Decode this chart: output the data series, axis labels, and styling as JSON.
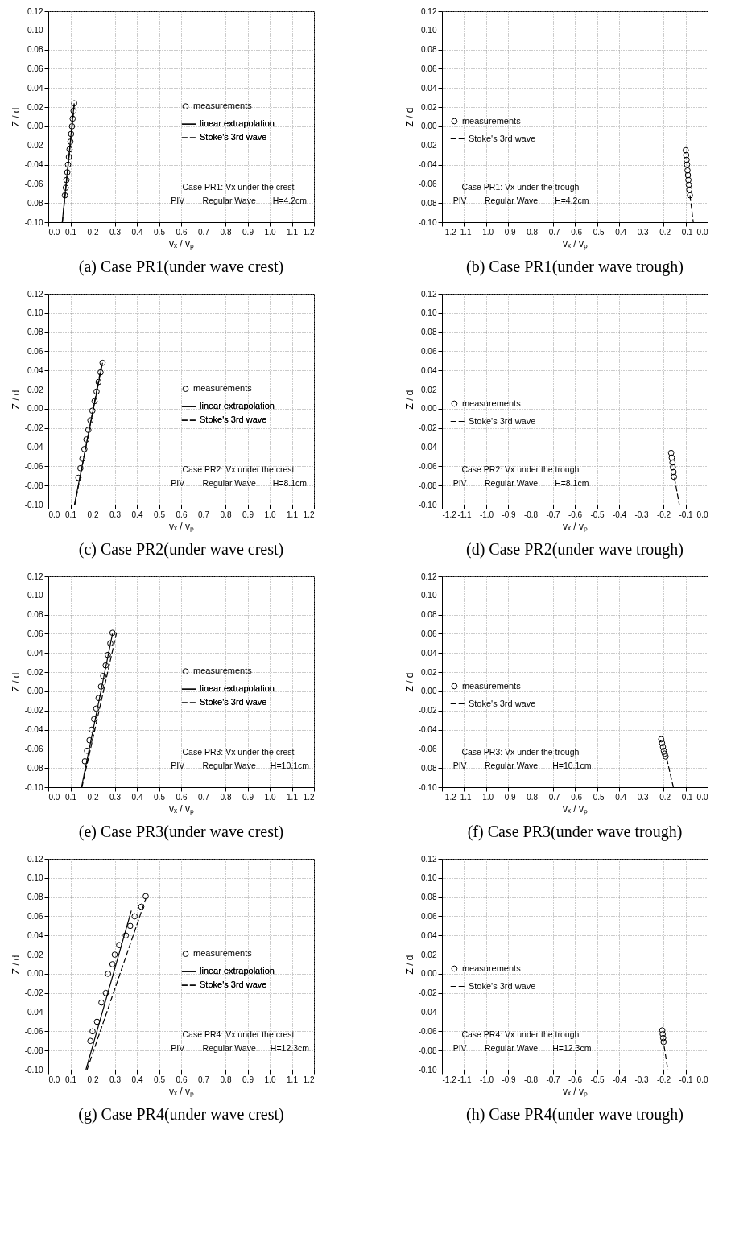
{
  "chart_data": [
    {
      "type": "scatter",
      "title": "(a) Case PR1(under wave crest)",
      "xlabel": "vₓ / vₚ",
      "ylabel": "Z / d",
      "xlim": [
        0,
        1.2
      ],
      "ylim": [
        -0.1,
        0.12
      ],
      "grid": true,
      "legend": "right",
      "xticks": [
        {
          "value": 0,
          "label": "0.0"
        },
        {
          "value": 0.1,
          "label": "0.1"
        },
        {
          "value": 0.2,
          "label": "0.2"
        },
        {
          "value": 0.3,
          "label": "0.3"
        },
        {
          "value": 0.4,
          "label": "0.4"
        },
        {
          "value": 0.5,
          "label": "0.5"
        },
        {
          "value": 0.6,
          "label": "0.6"
        },
        {
          "value": 0.7,
          "label": "0.7"
        },
        {
          "value": 0.8,
          "label": "0.8"
        },
        {
          "value": 0.9,
          "label": "0.9"
        },
        {
          "value": 1,
          "label": "1.0"
        },
        {
          "value": 1.1,
          "label": "1.1"
        },
        {
          "value": 1.2,
          "label": "1.2"
        }
      ],
      "yticks": [
        {
          "value": -0.1,
          "label": "-0.10"
        },
        {
          "value": -0.08,
          "label": "-0.08"
        },
        {
          "value": -0.06,
          "label": "-0.06"
        },
        {
          "value": -0.04,
          "label": "-0.04"
        },
        {
          "value": -0.02,
          "label": "-0.02"
        },
        {
          "value": 0,
          "label": "0.00"
        },
        {
          "value": 0.02,
          "label": "0.02"
        },
        {
          "value": 0.04,
          "label": "0.04"
        },
        {
          "value": 0.06,
          "label": "0.06"
        },
        {
          "value": 0.08,
          "label": "0.08"
        },
        {
          "value": 0.1,
          "label": "0.10"
        },
        {
          "value": 0.12,
          "label": "0.12"
        }
      ],
      "series": [
        {
          "name": "measurements",
          "marker": "circle",
          "color": "#000000",
          "x": [
            0.075,
            0.079,
            0.082,
            0.086,
            0.089,
            0.093,
            0.096,
            0.1,
            0.103,
            0.107,
            0.11,
            0.114,
            0.117
          ],
          "values": [
            -0.072,
            -0.064,
            -0.056,
            -0.048,
            -0.04,
            -0.032,
            -0.024,
            -0.016,
            -0.008,
            0,
            0.008,
            0.016,
            0.024
          ]
        },
        {
          "name": "linear extrapolation",
          "type": "line",
          "line_style": "solid",
          "color": "#000000",
          "x": [
            0.063,
            0.117
          ],
          "values": [
            -0.1,
            0.024
          ]
        },
        {
          "name": "Stoke's 3rd wave",
          "type": "line",
          "line_style": "dashed",
          "color": "#000000",
          "x": [
            0.064,
            0.118
          ],
          "values": [
            -0.1,
            0.024
          ]
        }
      ],
      "annotations": [
        "Case PR1: Vx under the crest",
        "PIV",
        "Regular Wave",
        "H=4.2cm"
      ]
    },
    {
      "type": "scatter",
      "title": "(b) Case PR1(under wave trough)",
      "xlabel": "vₓ / vₚ",
      "ylabel": "Z / d",
      "xlim": [
        -1.2,
        0
      ],
      "ylim": [
        -0.1,
        0.12
      ],
      "grid": true,
      "legend": "left",
      "xticks": [
        {
          "value": -1.2,
          "label": "-1.2"
        },
        {
          "value": -1.1,
          "label": "-1.1"
        },
        {
          "value": -1,
          "label": "-1.0"
        },
        {
          "value": -0.9,
          "label": "-0.9"
        },
        {
          "value": -0.8,
          "label": "-0.8"
        },
        {
          "value": -0.7,
          "label": "-0.7"
        },
        {
          "value": -0.6,
          "label": "-0.6"
        },
        {
          "value": -0.5,
          "label": "-0.5"
        },
        {
          "value": -0.4,
          "label": "-0.4"
        },
        {
          "value": -0.3,
          "label": "-0.3"
        },
        {
          "value": -0.2,
          "label": "-0.2"
        },
        {
          "value": -0.1,
          "label": "-0.1"
        },
        {
          "value": 0,
          "label": "0.0"
        }
      ],
      "yticks": [
        {
          "value": -0.1,
          "label": "-0.10"
        },
        {
          "value": -0.08,
          "label": "-0.08"
        },
        {
          "value": -0.06,
          "label": "-0.06"
        },
        {
          "value": -0.04,
          "label": "-0.04"
        },
        {
          "value": -0.02,
          "label": "-0.02"
        },
        {
          "value": 0,
          "label": "0.00"
        },
        {
          "value": 0.02,
          "label": "0.02"
        },
        {
          "value": 0.04,
          "label": "0.04"
        },
        {
          "value": 0.06,
          "label": "0.06"
        },
        {
          "value": 0.08,
          "label": "0.08"
        },
        {
          "value": 0.1,
          "label": "0.10"
        },
        {
          "value": 0.12,
          "label": "0.12"
        }
      ],
      "series": [
        {
          "name": "measurements",
          "marker": "circle",
          "color": "#000000",
          "x": [
            -0.099,
            -0.097,
            -0.095,
            -0.093,
            -0.091,
            -0.089,
            -0.087,
            -0.085,
            -0.083,
            -0.08
          ],
          "values": [
            -0.025,
            -0.03,
            -0.035,
            -0.04,
            -0.046,
            -0.051,
            -0.056,
            -0.061,
            -0.066,
            -0.072
          ]
        },
        {
          "name": "Stoke's 3rd wave",
          "type": "line",
          "line_style": "dashed",
          "color": "#000000",
          "x": [
            -0.08,
            -0.065
          ],
          "values": [
            -0.072,
            -0.1
          ]
        }
      ],
      "annotations": [
        "Case PR1: Vx under the trough",
        "PIV",
        "Regular Wave",
        "H=4.2cm"
      ]
    },
    {
      "type": "scatter",
      "title": "(c) Case PR2(under wave crest)",
      "xlabel": "vₓ / vₚ",
      "ylabel": "Z / d",
      "xlim": [
        0,
        1.2
      ],
      "ylim": [
        -0.1,
        0.12
      ],
      "grid": true,
      "legend": "right",
      "xticks": [
        {
          "value": 0,
          "label": "0.0"
        },
        {
          "value": 0.1,
          "label": "0.1"
        },
        {
          "value": 0.2,
          "label": "0.2"
        },
        {
          "value": 0.3,
          "label": "0.3"
        },
        {
          "value": 0.4,
          "label": "0.4"
        },
        {
          "value": 0.5,
          "label": "0.5"
        },
        {
          "value": 0.6,
          "label": "0.6"
        },
        {
          "value": 0.7,
          "label": "0.7"
        },
        {
          "value": 0.8,
          "label": "0.8"
        },
        {
          "value": 0.9,
          "label": "0.9"
        },
        {
          "value": 1,
          "label": "1.0"
        },
        {
          "value": 1.1,
          "label": "1.1"
        },
        {
          "value": 1.2,
          "label": "1.2"
        }
      ],
      "yticks": [
        {
          "value": -0.1,
          "label": "-0.10"
        },
        {
          "value": -0.08,
          "label": "-0.08"
        },
        {
          "value": -0.06,
          "label": "-0.06"
        },
        {
          "value": -0.04,
          "label": "-0.04"
        },
        {
          "value": -0.02,
          "label": "-0.02"
        },
        {
          "value": 0,
          "label": "0.00"
        },
        {
          "value": 0.02,
          "label": "0.02"
        },
        {
          "value": 0.04,
          "label": "0.04"
        },
        {
          "value": 0.06,
          "label": "0.06"
        },
        {
          "value": 0.08,
          "label": "0.08"
        },
        {
          "value": 0.1,
          "label": "0.10"
        },
        {
          "value": 0.12,
          "label": "0.12"
        }
      ],
      "series": [
        {
          "name": "measurements",
          "marker": "circle",
          "color": "#000000",
          "x": [
            0.136,
            0.145,
            0.154,
            0.163,
            0.172,
            0.181,
            0.19,
            0.199,
            0.209,
            0.218,
            0.227,
            0.236,
            0.245
          ],
          "values": [
            -0.072,
            -0.062,
            -0.052,
            -0.042,
            -0.032,
            -0.022,
            -0.012,
            -0.002,
            0.008,
            0.018,
            0.028,
            0.038,
            0.048
          ]
        },
        {
          "name": "linear extrapolation",
          "type": "line",
          "line_style": "solid",
          "color": "#000000",
          "x": [
            0.118,
            0.245
          ],
          "values": [
            -0.1,
            0.048
          ]
        },
        {
          "name": "Stoke's 3rd wave",
          "type": "line",
          "line_style": "dashed",
          "color": "#000000",
          "x": [
            0.12,
            0.24
          ],
          "values": [
            -0.1,
            0.045
          ]
        }
      ],
      "annotations": [
        "Case PR2: Vx under the crest",
        "PIV",
        "Regular Wave",
        "H=8.1cm"
      ]
    },
    {
      "type": "scatter",
      "title": "(d) Case PR2(under wave trough)",
      "xlabel": "vₓ / vₚ",
      "ylabel": "Z / d",
      "xlim": [
        -1.2,
        0
      ],
      "ylim": [
        -0.1,
        0.12
      ],
      "grid": true,
      "legend": "left",
      "xticks": [
        {
          "value": -1.2,
          "label": "-1.2"
        },
        {
          "value": -1.1,
          "label": "-1.1"
        },
        {
          "value": -1,
          "label": "-1.0"
        },
        {
          "value": -0.9,
          "label": "-0.9"
        },
        {
          "value": -0.8,
          "label": "-0.8"
        },
        {
          "value": -0.7,
          "label": "-0.7"
        },
        {
          "value": -0.6,
          "label": "-0.6"
        },
        {
          "value": -0.5,
          "label": "-0.5"
        },
        {
          "value": -0.4,
          "label": "-0.4"
        },
        {
          "value": -0.3,
          "label": "-0.3"
        },
        {
          "value": -0.2,
          "label": "-0.2"
        },
        {
          "value": -0.1,
          "label": "-0.1"
        },
        {
          "value": 0,
          "label": "0.0"
        }
      ],
      "yticks": [
        {
          "value": -0.1,
          "label": "-0.10"
        },
        {
          "value": -0.08,
          "label": "-0.08"
        },
        {
          "value": -0.06,
          "label": "-0.06"
        },
        {
          "value": -0.04,
          "label": "-0.04"
        },
        {
          "value": -0.02,
          "label": "-0.02"
        },
        {
          "value": 0,
          "label": "0.00"
        },
        {
          "value": 0.02,
          "label": "0.02"
        },
        {
          "value": 0.04,
          "label": "0.04"
        },
        {
          "value": 0.06,
          "label": "0.06"
        },
        {
          "value": 0.08,
          "label": "0.08"
        },
        {
          "value": 0.1,
          "label": "0.10"
        },
        {
          "value": 0.12,
          "label": "0.12"
        }
      ],
      "series": [
        {
          "name": "measurements",
          "marker": "circle",
          "color": "#000000",
          "x": [
            -0.165,
            -0.162,
            -0.159,
            -0.157,
            -0.154,
            -0.152
          ],
          "values": [
            -0.046,
            -0.051,
            -0.056,
            -0.061,
            -0.066,
            -0.071
          ]
        },
        {
          "name": "Stoke's 3rd wave",
          "type": "line",
          "line_style": "dashed",
          "color": "#000000",
          "x": [
            -0.15,
            -0.128
          ],
          "values": [
            -0.072,
            -0.1
          ]
        }
      ],
      "annotations": [
        "Case PR2: Vx under the trough",
        "PIV",
        "Regular Wave",
        "H=8.1cm"
      ]
    },
    {
      "type": "scatter",
      "title": "(e) Case PR3(under wave crest)",
      "xlabel": "vₓ / vₚ",
      "ylabel": "Z / d",
      "xlim": [
        0,
        1.2
      ],
      "ylim": [
        -0.1,
        0.12
      ],
      "grid": true,
      "legend": "right",
      "xticks": [
        {
          "value": 0,
          "label": "0.0"
        },
        {
          "value": 0.1,
          "label": "0.1"
        },
        {
          "value": 0.2,
          "label": "0.2"
        },
        {
          "value": 0.3,
          "label": "0.3"
        },
        {
          "value": 0.4,
          "label": "0.4"
        },
        {
          "value": 0.5,
          "label": "0.5"
        },
        {
          "value": 0.6,
          "label": "0.6"
        },
        {
          "value": 0.7,
          "label": "0.7"
        },
        {
          "value": 0.8,
          "label": "0.8"
        },
        {
          "value": 0.9,
          "label": "0.9"
        },
        {
          "value": 1,
          "label": "1.0"
        },
        {
          "value": 1.1,
          "label": "1.1"
        },
        {
          "value": 1.2,
          "label": "1.2"
        }
      ],
      "yticks": [
        {
          "value": -0.1,
          "label": "-0.10"
        },
        {
          "value": -0.08,
          "label": "-0.08"
        },
        {
          "value": -0.06,
          "label": "-0.06"
        },
        {
          "value": -0.04,
          "label": "-0.04"
        },
        {
          "value": -0.02,
          "label": "-0.02"
        },
        {
          "value": 0,
          "label": "0.00"
        },
        {
          "value": 0.02,
          "label": "0.02"
        },
        {
          "value": 0.04,
          "label": "0.04"
        },
        {
          "value": 0.06,
          "label": "0.06"
        },
        {
          "value": 0.08,
          "label": "0.08"
        },
        {
          "value": 0.1,
          "label": "0.10"
        },
        {
          "value": 0.12,
          "label": "0.12"
        }
      ],
      "series": [
        {
          "name": "measurements",
          "marker": "circle",
          "color": "#000000",
          "x": [
            0.165,
            0.175,
            0.186,
            0.196,
            0.207,
            0.217,
            0.227,
            0.238,
            0.248,
            0.259,
            0.269,
            0.28,
            0.29
          ],
          "values": [
            -0.073,
            -0.062,
            -0.051,
            -0.04,
            -0.029,
            -0.018,
            -0.007,
            0.005,
            0.016,
            0.027,
            0.038,
            0.05,
            0.061
          ]
        },
        {
          "name": "linear extrapolation",
          "type": "line",
          "line_style": "solid",
          "color": "#000000",
          "x": [
            0.15,
            0.29
          ],
          "values": [
            -0.1,
            0.06
          ]
        },
        {
          "name": "Stoke's 3rd wave",
          "type": "line",
          "line_style": "dashed",
          "color": "#000000",
          "x": [
            0.152,
            0.31
          ],
          "values": [
            -0.1,
            0.063
          ]
        }
      ],
      "annotations": [
        "Case PR3: Vx under the crest",
        "PIV",
        "Regular Wave",
        "H=10.1cm"
      ]
    },
    {
      "type": "scatter",
      "title": "(f) Case PR3(under wave trough)",
      "xlabel": "vₓ / vₚ",
      "ylabel": "Z / d",
      "xlim": [
        -1.2,
        0
      ],
      "ylim": [
        -0.1,
        0.12
      ],
      "grid": true,
      "legend": "left",
      "xticks": [
        {
          "value": -1.2,
          "label": "-1.2"
        },
        {
          "value": -1.1,
          "label": "-1.1"
        },
        {
          "value": -1,
          "label": "-1.0"
        },
        {
          "value": -0.9,
          "label": "-0.9"
        },
        {
          "value": -0.8,
          "label": "-0.8"
        },
        {
          "value": -0.7,
          "label": "-0.7"
        },
        {
          "value": -0.6,
          "label": "-0.6"
        },
        {
          "value": -0.5,
          "label": "-0.5"
        },
        {
          "value": -0.4,
          "label": "-0.4"
        },
        {
          "value": -0.3,
          "label": "-0.3"
        },
        {
          "value": -0.2,
          "label": "-0.2"
        },
        {
          "value": -0.1,
          "label": "-0.1"
        },
        {
          "value": 0,
          "label": "0.0"
        }
      ],
      "yticks": [
        {
          "value": -0.1,
          "label": "-0.10"
        },
        {
          "value": -0.08,
          "label": "-0.08"
        },
        {
          "value": -0.06,
          "label": "-0.06"
        },
        {
          "value": -0.04,
          "label": "-0.04"
        },
        {
          "value": -0.02,
          "label": "-0.02"
        },
        {
          "value": 0,
          "label": "0.00"
        },
        {
          "value": 0.02,
          "label": "0.02"
        },
        {
          "value": 0.04,
          "label": "0.04"
        },
        {
          "value": 0.06,
          "label": "0.06"
        },
        {
          "value": 0.08,
          "label": "0.08"
        },
        {
          "value": 0.1,
          "label": "0.10"
        },
        {
          "value": 0.12,
          "label": "0.12"
        }
      ],
      "series": [
        {
          "name": "measurements",
          "marker": "circle",
          "color": "#000000",
          "x": [
            -0.21,
            -0.206,
            -0.202,
            -0.198,
            -0.194,
            -0.19
          ],
          "values": [
            -0.05,
            -0.054,
            -0.058,
            -0.062,
            -0.065,
            -0.068
          ]
        },
        {
          "name": "Stoke's 3rd wave",
          "type": "line",
          "line_style": "dashed",
          "color": "#000000",
          "x": [
            -0.185,
            -0.155
          ],
          "values": [
            -0.07,
            -0.1
          ]
        }
      ],
      "annotations": [
        "Case PR3: Vx under the trough",
        "PIV",
        "Regular Wave",
        "H=10.1cm"
      ]
    },
    {
      "type": "scatter",
      "title": "(g) Case PR4(under wave crest)",
      "xlabel": "vₓ / vₚ",
      "ylabel": "Z / d",
      "xlim": [
        0,
        1.2
      ],
      "ylim": [
        -0.1,
        0.12
      ],
      "grid": true,
      "legend": "right",
      "xticks": [
        {
          "value": 0,
          "label": "0.0"
        },
        {
          "value": 0.1,
          "label": "0.1"
        },
        {
          "value": 0.2,
          "label": "0.2"
        },
        {
          "value": 0.3,
          "label": "0.3"
        },
        {
          "value": 0.4,
          "label": "0.4"
        },
        {
          "value": 0.5,
          "label": "0.5"
        },
        {
          "value": 0.6,
          "label": "0.6"
        },
        {
          "value": 0.7,
          "label": "0.7"
        },
        {
          "value": 0.8,
          "label": "0.8"
        },
        {
          "value": 0.9,
          "label": "0.9"
        },
        {
          "value": 1,
          "label": "1.0"
        },
        {
          "value": 1.1,
          "label": "1.1"
        },
        {
          "value": 1.2,
          "label": "1.2"
        }
      ],
      "yticks": [
        {
          "value": -0.1,
          "label": "-0.10"
        },
        {
          "value": -0.08,
          "label": "-0.08"
        },
        {
          "value": -0.06,
          "label": "-0.06"
        },
        {
          "value": -0.04,
          "label": "-0.04"
        },
        {
          "value": -0.02,
          "label": "-0.02"
        },
        {
          "value": 0,
          "label": "0.00"
        },
        {
          "value": 0.02,
          "label": "0.02"
        },
        {
          "value": 0.04,
          "label": "0.04"
        },
        {
          "value": 0.06,
          "label": "0.06"
        },
        {
          "value": 0.08,
          "label": "0.08"
        },
        {
          "value": 0.1,
          "label": "0.10"
        },
        {
          "value": 0.12,
          "label": "0.12"
        }
      ],
      "series": [
        {
          "name": "measurements",
          "marker": "circle",
          "color": "#000000",
          "x": [
            0.19,
            0.2,
            0.22,
            0.24,
            0.26,
            0.27,
            0.29,
            0.3,
            0.32,
            0.35,
            0.37,
            0.39,
            0.42,
            0.44
          ],
          "values": [
            -0.07,
            -0.06,
            -0.05,
            -0.03,
            -0.02,
            0,
            0.01,
            0.02,
            0.03,
            0.04,
            0.05,
            0.06,
            0.07,
            0.081
          ]
        },
        {
          "name": "linear extrapolation",
          "type": "line",
          "line_style": "solid",
          "color": "#000000",
          "x": [
            0.17,
            0.375
          ],
          "values": [
            -0.1,
            0.066
          ]
        },
        {
          "name": "Stoke's 3rd wave",
          "type": "line",
          "line_style": "dashed",
          "color": "#000000",
          "x": [
            0.175,
            0.44
          ],
          "values": [
            -0.1,
            0.078
          ]
        }
      ],
      "annotations": [
        "Case PR4: Vx under the crest",
        "PIV",
        "Regular Wave",
        "H=12.3cm"
      ]
    },
    {
      "type": "scatter",
      "title": "(h) Case PR4(under wave trough)",
      "xlabel": "vₓ / vₚ",
      "ylabel": "Z / d",
      "xlim": [
        -1.2,
        0
      ],
      "ylim": [
        -0.1,
        0.12
      ],
      "grid": true,
      "legend": "left",
      "xticks": [
        {
          "value": -1.2,
          "label": "-1.2"
        },
        {
          "value": -1.1,
          "label": "-1.1"
        },
        {
          "value": -1,
          "label": "-1.0"
        },
        {
          "value": -0.9,
          "label": "-0.9"
        },
        {
          "value": -0.8,
          "label": "-0.8"
        },
        {
          "value": -0.7,
          "label": "-0.7"
        },
        {
          "value": -0.6,
          "label": "-0.6"
        },
        {
          "value": -0.5,
          "label": "-0.5"
        },
        {
          "value": -0.4,
          "label": "-0.4"
        },
        {
          "value": -0.3,
          "label": "-0.3"
        },
        {
          "value": -0.2,
          "label": "-0.2"
        },
        {
          "value": -0.1,
          "label": "-0.1"
        },
        {
          "value": 0,
          "label": "0.0"
        }
      ],
      "yticks": [
        {
          "value": -0.1,
          "label": "-0.10"
        },
        {
          "value": -0.08,
          "label": "-0.08"
        },
        {
          "value": -0.06,
          "label": "-0.06"
        },
        {
          "value": -0.04,
          "label": "-0.04"
        },
        {
          "value": -0.02,
          "label": "-0.02"
        },
        {
          "value": 0,
          "label": "0.00"
        },
        {
          "value": 0.02,
          "label": "0.02"
        },
        {
          "value": 0.04,
          "label": "0.04"
        },
        {
          "value": 0.06,
          "label": "0.06"
        },
        {
          "value": 0.08,
          "label": "0.08"
        },
        {
          "value": 0.1,
          "label": "0.10"
        },
        {
          "value": 0.12,
          "label": "0.12"
        }
      ],
      "series": [
        {
          "name": "measurements",
          "marker": "circle",
          "color": "#000000",
          "x": [
            -0.205,
            -0.203,
            -0.201,
            -0.199
          ],
          "values": [
            -0.059,
            -0.063,
            -0.067,
            -0.071
          ]
        },
        {
          "name": "Stoke's 3rd wave",
          "type": "line",
          "line_style": "dashed",
          "color": "#000000",
          "x": [
            -0.197,
            -0.18
          ],
          "values": [
            -0.075,
            -0.1
          ]
        }
      ],
      "annotations": [
        "Case PR4: Vx under the trough",
        "PIV",
        "Regular Wave",
        "H=12.3cm"
      ]
    }
  ]
}
